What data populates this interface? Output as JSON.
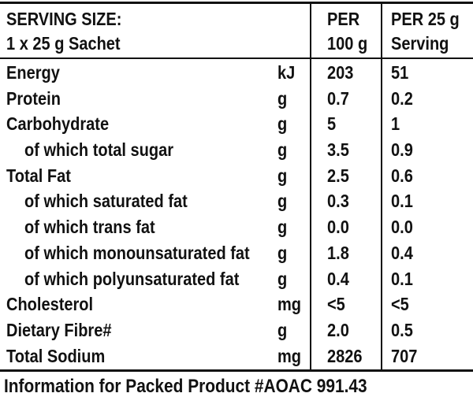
{
  "header": {
    "serving_title": "SERVING SIZE:",
    "serving_detail": "1 x 25 g Sachet",
    "col_per100_line1": "PER",
    "col_per100_line2": "100 g",
    "col_per25_line1": "PER 25 g",
    "col_per25_line2": "Serving"
  },
  "rows": [
    {
      "label": "Energy",
      "indent": false,
      "unit": "kJ",
      "per100": "203",
      "per25": "51"
    },
    {
      "label": "Protein",
      "indent": false,
      "unit": "g",
      "per100": "0.7",
      "per25": "0.2"
    },
    {
      "label": "Carbohydrate",
      "indent": false,
      "unit": "g",
      "per100": "5",
      "per25": "1"
    },
    {
      "label": "of which total sugar",
      "indent": true,
      "unit": "g",
      "per100": "3.5",
      "per25": "0.9"
    },
    {
      "label": "Total Fat",
      "indent": false,
      "unit": "g",
      "per100": "2.5",
      "per25": "0.6"
    },
    {
      "label": "of which saturated fat",
      "indent": true,
      "unit": "g",
      "per100": "0.3",
      "per25": "0.1"
    },
    {
      "label": "of which trans fat",
      "indent": true,
      "unit": "g",
      "per100": "0.0",
      "per25": "0.0"
    },
    {
      "label": "of which monounsaturated fat",
      "indent": true,
      "unit": "g",
      "per100": "1.8",
      "per25": "0.4"
    },
    {
      "label": "of which polyunsaturated fat",
      "indent": true,
      "unit": "g",
      "per100": "0.4",
      "per25": "0.1"
    },
    {
      "label": "Cholesterol",
      "indent": false,
      "unit": "mg",
      "per100": "<5",
      "per25": "<5"
    },
    {
      "label": "Dietary Fibre#",
      "indent": false,
      "unit": "g",
      "per100": "2.0",
      "per25": "0.5"
    },
    {
      "label": "Total Sodium",
      "indent": false,
      "unit": "mg",
      "per100": "2826",
      "per25": "707"
    }
  ],
  "footer": {
    "note": "Information for Packed Product #AOAC 991.43"
  },
  "colors": {
    "background": "#ffffff",
    "text": "#111111",
    "rule": "#111111"
  }
}
